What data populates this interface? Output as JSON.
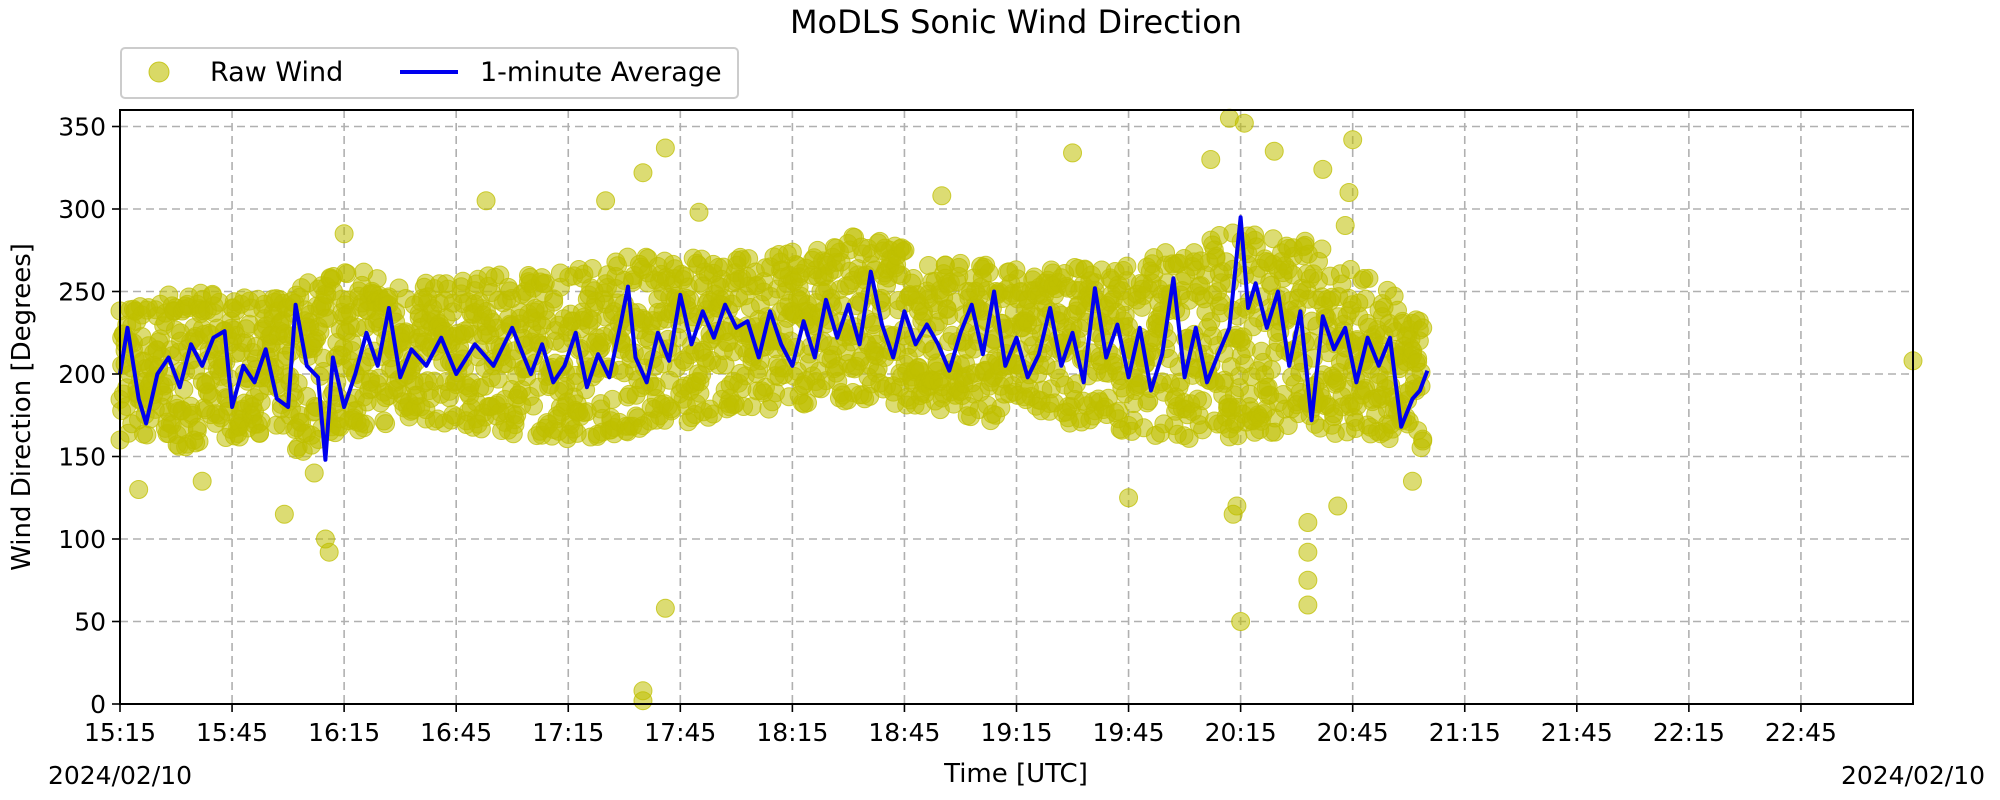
{
  "chart_data": {
    "type": "scatter",
    "title": "MoDLS Sonic Wind Direction",
    "xlabel": "Time [UTC]",
    "ylabel": "Wind Direction [Degrees]",
    "date_left": "2024/02/10",
    "date_right": "2024/02/10",
    "xlim": [
      "15:15",
      "23:15"
    ],
    "ylim": [
      0,
      360
    ],
    "x_ticks": [
      "15:15",
      "15:45",
      "16:15",
      "16:45",
      "17:15",
      "17:45",
      "18:15",
      "18:45",
      "19:15",
      "19:45",
      "20:15",
      "20:45",
      "21:15",
      "21:45",
      "22:15",
      "22:45"
    ],
    "y_ticks": [
      0,
      50,
      100,
      150,
      200,
      250,
      300,
      350
    ],
    "grid": true,
    "legend_position": "top-left, above plot",
    "series": [
      {
        "name": "Raw Wind",
        "kind": "scatter",
        "color": "#bfbf00",
        "band": [
          [
            "15:15",
            160,
            245
          ],
          [
            "15:35",
            155,
            250
          ],
          [
            "15:55",
            165,
            245
          ],
          [
            "16:05",
            150,
            260
          ],
          [
            "16:15",
            165,
            265
          ],
          [
            "16:35",
            170,
            255
          ],
          [
            "16:55",
            165,
            260
          ],
          [
            "17:15",
            160,
            265
          ],
          [
            "17:35",
            165,
            275
          ],
          [
            "17:55",
            175,
            270
          ],
          [
            "18:15",
            180,
            275
          ],
          [
            "18:35",
            185,
            285
          ],
          [
            "18:55",
            175,
            270
          ],
          [
            "19:15",
            170,
            265
          ],
          [
            "19:35",
            170,
            265
          ],
          [
            "19:55",
            160,
            275
          ],
          [
            "20:15",
            160,
            290
          ],
          [
            "20:35",
            165,
            280
          ],
          [
            "20:55",
            160,
            250
          ],
          [
            "21:04",
            150,
            230
          ]
        ],
        "outliers": [
          [
            "15:20",
            130
          ],
          [
            "15:37",
            135
          ],
          [
            "15:59",
            115
          ],
          [
            "16:11",
            92
          ],
          [
            "16:10",
            100
          ],
          [
            "16:07",
            140
          ],
          [
            "16:15",
            285
          ],
          [
            "16:53",
            305
          ],
          [
            "17:25",
            305
          ],
          [
            "17:35",
            2
          ],
          [
            "17:35",
            8
          ],
          [
            "17:35",
            322
          ],
          [
            "17:41",
            337
          ],
          [
            "17:41",
            58
          ],
          [
            "17:50",
            298
          ],
          [
            "18:55",
            308
          ],
          [
            "19:30",
            334
          ],
          [
            "19:45",
            125
          ],
          [
            "20:07",
            330
          ],
          [
            "20:12",
            355
          ],
          [
            "20:13",
            115
          ],
          [
            "20:14",
            120
          ],
          [
            "20:15",
            50
          ],
          [
            "20:16",
            352
          ],
          [
            "20:24",
            335
          ],
          [
            "20:33",
            110
          ],
          [
            "20:33",
            92
          ],
          [
            "20:33",
            75
          ],
          [
            "20:33",
            60
          ],
          [
            "20:37",
            324
          ],
          [
            "20:41",
            120
          ],
          [
            "20:43",
            290
          ],
          [
            "20:45",
            342
          ],
          [
            "20:44",
            310
          ],
          [
            "21:01",
            135
          ],
          [
            "23:15",
            208
          ]
        ]
      },
      {
        "name": "1-minute Average",
        "kind": "line",
        "color": "#0000ee",
        "points": [
          [
            "15:15",
            200
          ],
          [
            "15:17",
            228
          ],
          [
            "15:20",
            185
          ],
          [
            "15:22",
            170
          ],
          [
            "15:25",
            200
          ],
          [
            "15:28",
            210
          ],
          [
            "15:31",
            192
          ],
          [
            "15:34",
            218
          ],
          [
            "15:37",
            205
          ],
          [
            "15:40",
            222
          ],
          [
            "15:43",
            226
          ],
          [
            "15:45",
            180
          ],
          [
            "15:48",
            205
          ],
          [
            "15:51",
            195
          ],
          [
            "15:54",
            215
          ],
          [
            "15:57",
            185
          ],
          [
            "16:00",
            180
          ],
          [
            "16:02",
            242
          ],
          [
            "16:05",
            205
          ],
          [
            "16:08",
            198
          ],
          [
            "16:10",
            148
          ],
          [
            "16:12",
            210
          ],
          [
            "16:15",
            180
          ],
          [
            "16:18",
            200
          ],
          [
            "16:21",
            225
          ],
          [
            "16:24",
            205
          ],
          [
            "16:27",
            240
          ],
          [
            "16:30",
            198
          ],
          [
            "16:33",
            215
          ],
          [
            "16:37",
            205
          ],
          [
            "16:41",
            222
          ],
          [
            "16:45",
            200
          ],
          [
            "16:50",
            218
          ],
          [
            "16:55",
            205
          ],
          [
            "17:00",
            228
          ],
          [
            "17:05",
            200
          ],
          [
            "17:08",
            218
          ],
          [
            "17:11",
            195
          ],
          [
            "17:14",
            205
          ],
          [
            "17:17",
            225
          ],
          [
            "17:20",
            192
          ],
          [
            "17:23",
            212
          ],
          [
            "17:26",
            198
          ],
          [
            "17:29",
            230
          ],
          [
            "17:31",
            253
          ],
          [
            "17:33",
            210
          ],
          [
            "17:36",
            195
          ],
          [
            "17:39",
            225
          ],
          [
            "17:42",
            208
          ],
          [
            "17:45",
            248
          ],
          [
            "17:48",
            218
          ],
          [
            "17:51",
            238
          ],
          [
            "17:54",
            222
          ],
          [
            "17:57",
            242
          ],
          [
            "18:00",
            228
          ],
          [
            "18:03",
            232
          ],
          [
            "18:06",
            210
          ],
          [
            "18:09",
            238
          ],
          [
            "18:12",
            218
          ],
          [
            "18:15",
            205
          ],
          [
            "18:18",
            232
          ],
          [
            "18:21",
            210
          ],
          [
            "18:24",
            245
          ],
          [
            "18:27",
            222
          ],
          [
            "18:30",
            242
          ],
          [
            "18:33",
            218
          ],
          [
            "18:36",
            262
          ],
          [
            "18:39",
            230
          ],
          [
            "18:42",
            210
          ],
          [
            "18:45",
            238
          ],
          [
            "18:48",
            218
          ],
          [
            "18:51",
            230
          ],
          [
            "18:54",
            218
          ],
          [
            "18:57",
            202
          ],
          [
            "19:00",
            225
          ],
          [
            "19:03",
            242
          ],
          [
            "19:06",
            212
          ],
          [
            "19:09",
            250
          ],
          [
            "19:12",
            205
          ],
          [
            "19:15",
            222
          ],
          [
            "19:18",
            198
          ],
          [
            "19:21",
            212
          ],
          [
            "19:24",
            240
          ],
          [
            "19:27",
            205
          ],
          [
            "19:30",
            225
          ],
          [
            "19:33",
            195
          ],
          [
            "19:36",
            252
          ],
          [
            "19:39",
            210
          ],
          [
            "19:42",
            230
          ],
          [
            "19:45",
            198
          ],
          [
            "19:48",
            228
          ],
          [
            "19:51",
            190
          ],
          [
            "19:54",
            212
          ],
          [
            "19:57",
            258
          ],
          [
            "20:00",
            198
          ],
          [
            "20:03",
            228
          ],
          [
            "20:06",
            195
          ],
          [
            "20:09",
            212
          ],
          [
            "20:12",
            228
          ],
          [
            "20:15",
            295
          ],
          [
            "20:17",
            240
          ],
          [
            "20:19",
            255
          ],
          [
            "20:22",
            228
          ],
          [
            "20:25",
            250
          ],
          [
            "20:28",
            205
          ],
          [
            "20:31",
            238
          ],
          [
            "20:34",
            172
          ],
          [
            "20:37",
            235
          ],
          [
            "20:40",
            215
          ],
          [
            "20:43",
            228
          ],
          [
            "20:46",
            195
          ],
          [
            "20:49",
            222
          ],
          [
            "20:52",
            205
          ],
          [
            "20:55",
            222
          ],
          [
            "20:58",
            168
          ],
          [
            "21:01",
            185
          ],
          [
            "21:03",
            190
          ],
          [
            "21:05",
            202
          ]
        ]
      }
    ]
  }
}
